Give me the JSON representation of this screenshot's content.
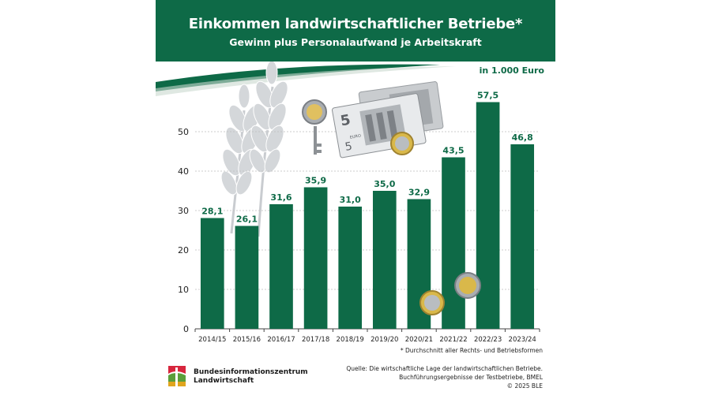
{
  "header": {
    "title": "Einkommen landwirtschaftlicher Betriebe*",
    "subtitle": "Gewinn plus Personalaufwand je Arbeitskraft"
  },
  "unit_label": "in 1.000 Euro",
  "footnote": "* Durchschnitt aller Rechts- und Betriebsformen",
  "logo": {
    "line1": "Bundesinformationszentrum",
    "line2": "Landwirtschaft"
  },
  "source": {
    "line1": "Quelle: Die wirtschaftliche Lage der landwirtschaftlichen Betriebe.",
    "line2": "Buchführungsergebnisse der Testbetriebe, BMEL",
    "line3": "© 2025 BLE"
  },
  "colors": {
    "brand_green": "#0e6a47",
    "grid": "#bfbfbf"
  },
  "illustrations": {
    "banknote_label": "5",
    "banknote_word": "EURO"
  },
  "chart_data": {
    "type": "bar",
    "categories": [
      "2014/15",
      "2015/16",
      "2016/17",
      "2017/18",
      "2018/19",
      "2019/20",
      "2020/21",
      "2021/22",
      "2022/23",
      "2023/24"
    ],
    "values": [
      28.1,
      26.1,
      31.6,
      35.9,
      31.0,
      35.0,
      32.9,
      43.5,
      57.5,
      46.8
    ],
    "value_labels": [
      "28,1",
      "26,1",
      "31,6",
      "35,9",
      "31,0",
      "35,0",
      "32,9",
      "43,5",
      "57,5",
      "46,8"
    ],
    "title": "Einkommen landwirtschaftlicher Betriebe*",
    "subtitle": "Gewinn plus Personalaufwand je Arbeitskraft",
    "ylabel": "in 1.000 Euro",
    "ylim": [
      0,
      60
    ],
    "yticks": [
      0,
      10,
      20,
      30,
      40,
      50
    ],
    "grid": true,
    "legend": "none"
  }
}
